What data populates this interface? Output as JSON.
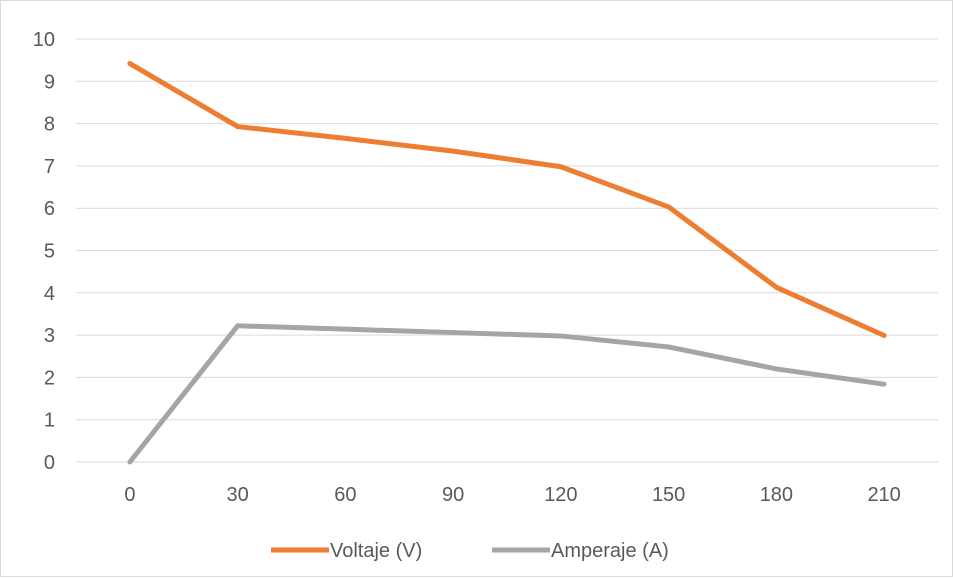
{
  "chart_data": {
    "type": "line",
    "x": [
      0,
      30,
      60,
      90,
      120,
      150,
      180,
      210
    ],
    "ylim": [
      0,
      10
    ],
    "yticks": [
      0,
      1,
      2,
      3,
      4,
      5,
      6,
      7,
      8,
      9,
      10
    ],
    "grid": true,
    "legend_position": "bottom",
    "series": [
      {
        "name": "Voltaje (V)",
        "color": "#ed7d31",
        "values": [
          9.42,
          7.93,
          7.65,
          7.35,
          6.98,
          6.03,
          4.13,
          2.99
        ]
      },
      {
        "name": "Amperaje (A)",
        "color": "#a5a5a5",
        "values": [
          0.0,
          3.22,
          3.14,
          3.06,
          2.98,
          2.72,
          2.2,
          1.84
        ]
      }
    ]
  }
}
